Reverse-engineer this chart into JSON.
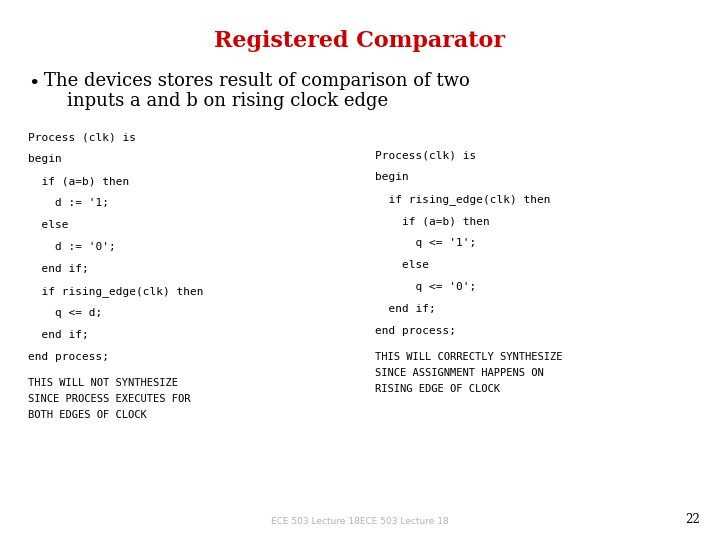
{
  "title": "Registered Comparator",
  "title_color": "#cc0000",
  "title_fontsize": 16,
  "bullet_text_line1": "The devices stores result of comparison of two",
  "bullet_text_line2": "    inputs a and b on rising clock edge",
  "bullet_fontsize": 13,
  "code_fontsize": 8.0,
  "small_fontsize": 7.5,
  "left_code": [
    "Process (clk) is",
    "begin",
    "  if (a=b) then",
    "    d := '1;",
    "  else",
    "    d := '0';",
    "  end if;",
    "  if rising_edge(clk) then",
    "    q <= d;",
    "  end if;",
    "end process;"
  ],
  "left_small": [
    "THIS WILL NOT SYNTHESIZE",
    "SINCE PROCESS EXECUTES FOR",
    "BOTH EDGES OF CLOCK"
  ],
  "right_code": [
    "Process(clk) is",
    "begin",
    "  if rising_edge(clk) then",
    "    if (a=b) then",
    "      q <= '1';",
    "    else",
    "      q <= '0';",
    "  end if;",
    "end process;"
  ],
  "right_small": [
    "THIS WILL CORRECTLY SYNTHESIZE",
    "SINCE ASSIGNMENT HAPPENS ON",
    "RISING EDGE OF CLOCK"
  ],
  "footer_text": "ECE 503 Lecture 18ECE 503 Lecture 18",
  "page_number": "22",
  "bg_color": "#ffffff"
}
